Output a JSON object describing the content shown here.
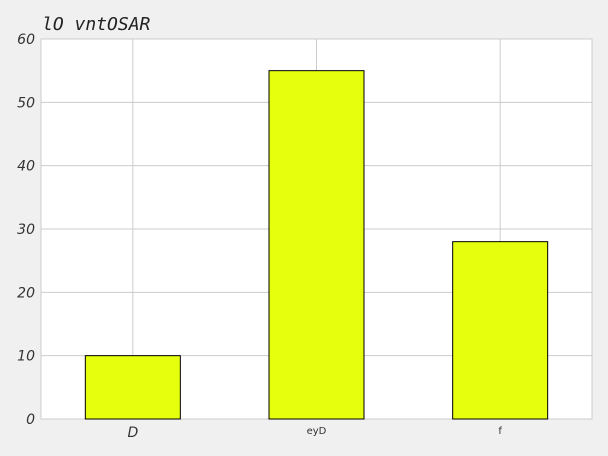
{
  "chart_data": {
    "type": "bar",
    "title": "lO vntOSAR",
    "categories": [
      "D",
      "eyD",
      "f"
    ],
    "values": [
      10,
      55,
      28
    ],
    "xlabel": "",
    "ylabel": "",
    "ylim": [
      0,
      60
    ],
    "yticks": [
      0,
      10,
      20,
      30,
      40,
      50,
      60
    ],
    "grid": true,
    "legend": "none",
    "colors": {
      "bar_fill": "#e6ff0d",
      "bar_stroke": "#000000",
      "grid": "#cccccc",
      "plot_background": "#ffffff",
      "figure_background": "#f0f0f0"
    }
  }
}
